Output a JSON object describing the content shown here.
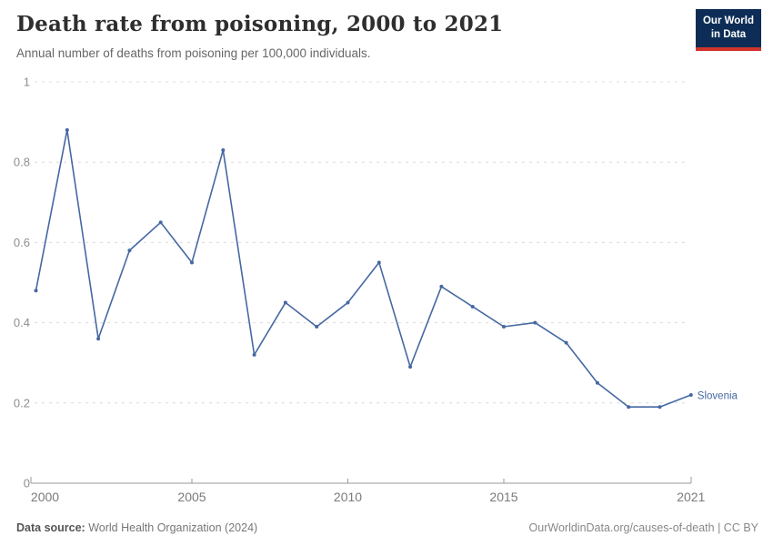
{
  "header": {
    "logo": {
      "line1": "Our World",
      "line2": "in Data",
      "bg_color": "#0d2d56",
      "accent_color": "#d0342c"
    }
  },
  "chart_data": {
    "type": "line",
    "title": "Death rate from poisoning, 2000 to 2021",
    "subtitle": "Annual number of deaths from poisoning per 100,000 individuals.",
    "x": [
      2000,
      2001,
      2002,
      2003,
      2004,
      2005,
      2006,
      2007,
      2008,
      2009,
      2010,
      2011,
      2012,
      2013,
      2014,
      2015,
      2016,
      2017,
      2018,
      2019,
      2020,
      2021
    ],
    "series": [
      {
        "name": "Slovenia",
        "color": "#4668a2",
        "values": [
          0.48,
          0.88,
          0.36,
          0.58,
          0.65,
          0.55,
          0.83,
          0.32,
          0.45,
          0.39,
          0.45,
          0.55,
          0.29,
          0.49,
          0.44,
          0.39,
          0.4,
          0.35,
          0.25,
          0.19,
          0.19,
          0.22
        ]
      }
    ],
    "xlabel": "",
    "ylabel": "",
    "ylim": [
      0,
      1
    ],
    "yticks": [
      0,
      0.2,
      0.4,
      0.6,
      0.8,
      1
    ],
    "xticks": [
      2000,
      2005,
      2010,
      2015,
      2021
    ],
    "grid": "horizontal-dashed",
    "legend": "end-of-line-label",
    "colors": {
      "gridline": "#dcdcdc",
      "axis": "#9a9a9a",
      "ytick_label": "#8e8e8e",
      "xtick_label": "#7a7a7a"
    }
  },
  "footer": {
    "source_label": "Data source:",
    "source_value": " World Health Organization (2024)",
    "right_link": "OurWorldinData.org/causes-of-death",
    "right_license": " | CC BY"
  }
}
